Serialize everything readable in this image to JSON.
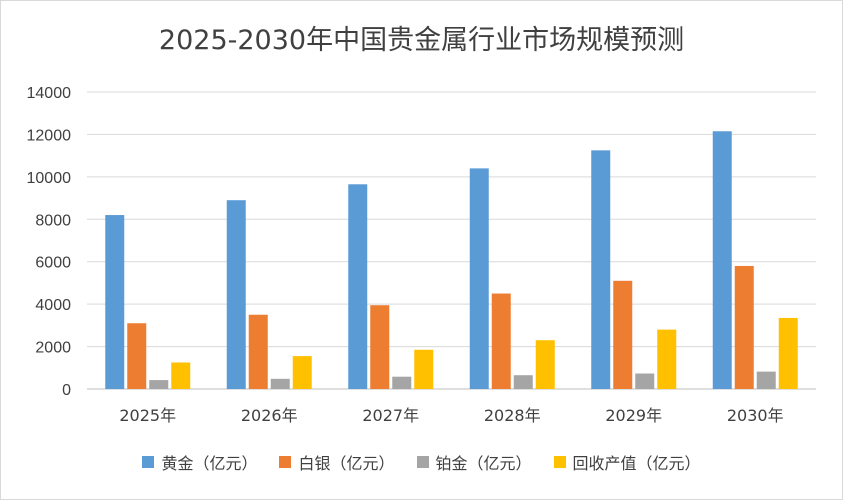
{
  "chart_data": {
    "type": "bar",
    "title": "2025-2030年中国贵金属行业市场规模预测",
    "categories": [
      "2025年",
      "2026年",
      "2027年",
      "2028年",
      "2029年",
      "2030年"
    ],
    "series": [
      {
        "name": "黄金（亿元）",
        "color": "#5b9bd5",
        "values": [
          8200,
          8900,
          9650,
          10400,
          11250,
          12150
        ]
      },
      {
        "name": "白银（亿元）",
        "color": "#ed7d31",
        "values": [
          3100,
          3500,
          3950,
          4500,
          5100,
          5800
        ]
      },
      {
        "name": "铂金（亿元）",
        "color": "#a5a5a5",
        "values": [
          420,
          480,
          580,
          650,
          730,
          820
        ]
      },
      {
        "name": "回收产值（亿元）",
        "color": "#ffc000",
        "values": [
          1250,
          1550,
          1850,
          2300,
          2800,
          3350
        ]
      }
    ],
    "yticks": [
      "0",
      "2000",
      "4000",
      "6000",
      "8000",
      "10000",
      "12000",
      "14000"
    ],
    "ylim": [
      0,
      14000
    ],
    "grid": true,
    "legend": "bottom"
  }
}
